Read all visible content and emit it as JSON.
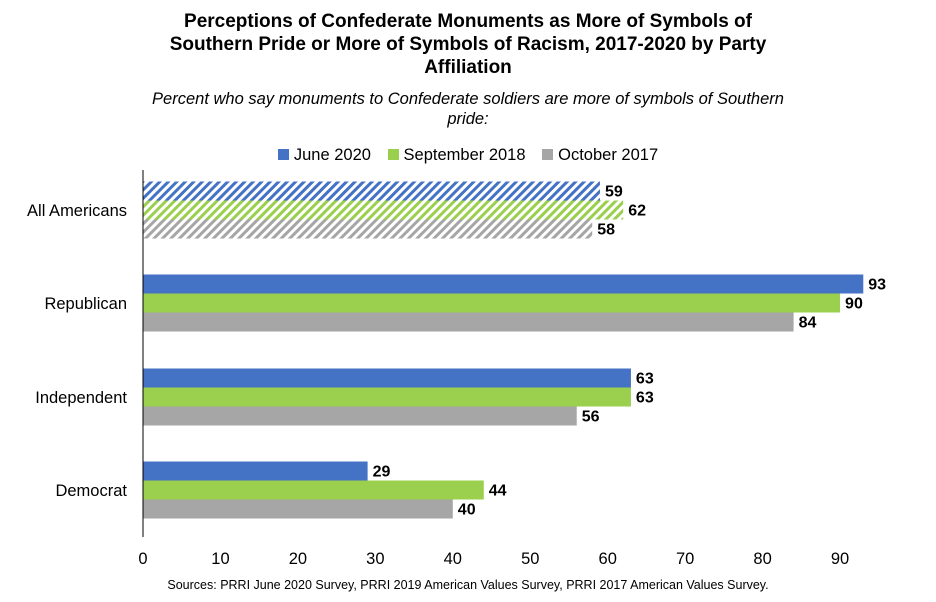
{
  "title_lines": [
    "Perceptions of Confederate Monuments as More of Symbols of",
    "Southern Pride or More of Symbols of Racism, 2017-2020 by Party",
    "Affiliation"
  ],
  "subtitle_lines": [
    "Percent who say monuments to Confederate soldiers are more of symbols of Southern",
    "pride:"
  ],
  "source": "Sources: PRRI June 2020 Survey, PRRI 2019 American Values Survey, PRRI 2017 American Values Survey.",
  "legend": [
    {
      "label": "June 2020",
      "color": "#4472C4"
    },
    {
      "label": "September 2018",
      "color": "#9BCF4E"
    },
    {
      "label": "October 2017",
      "color": "#A6A6A6"
    }
  ],
  "chart_data": {
    "type": "bar",
    "orientation": "horizontal",
    "categories": [
      "All Americans",
      "Republican",
      "Independent",
      "Democrat"
    ],
    "series": [
      {
        "name": "June 2020",
        "color": "#4472C4",
        "values": [
          59,
          93,
          63,
          29
        ]
      },
      {
        "name": "September 2018",
        "color": "#9BCF4E",
        "values": [
          62,
          90,
          63,
          44
        ]
      },
      {
        "name": "October 2017",
        "color": "#A6A6A6",
        "values": [
          58,
          84,
          56,
          40
        ]
      }
    ],
    "hatched_categories": [
      "All Americans"
    ],
    "xlim": [
      0,
      90
    ],
    "xticks": [
      0,
      10,
      20,
      30,
      40,
      50,
      60,
      70,
      80,
      90
    ],
    "data_labels": true,
    "grid": false,
    "legend_position": "top"
  }
}
